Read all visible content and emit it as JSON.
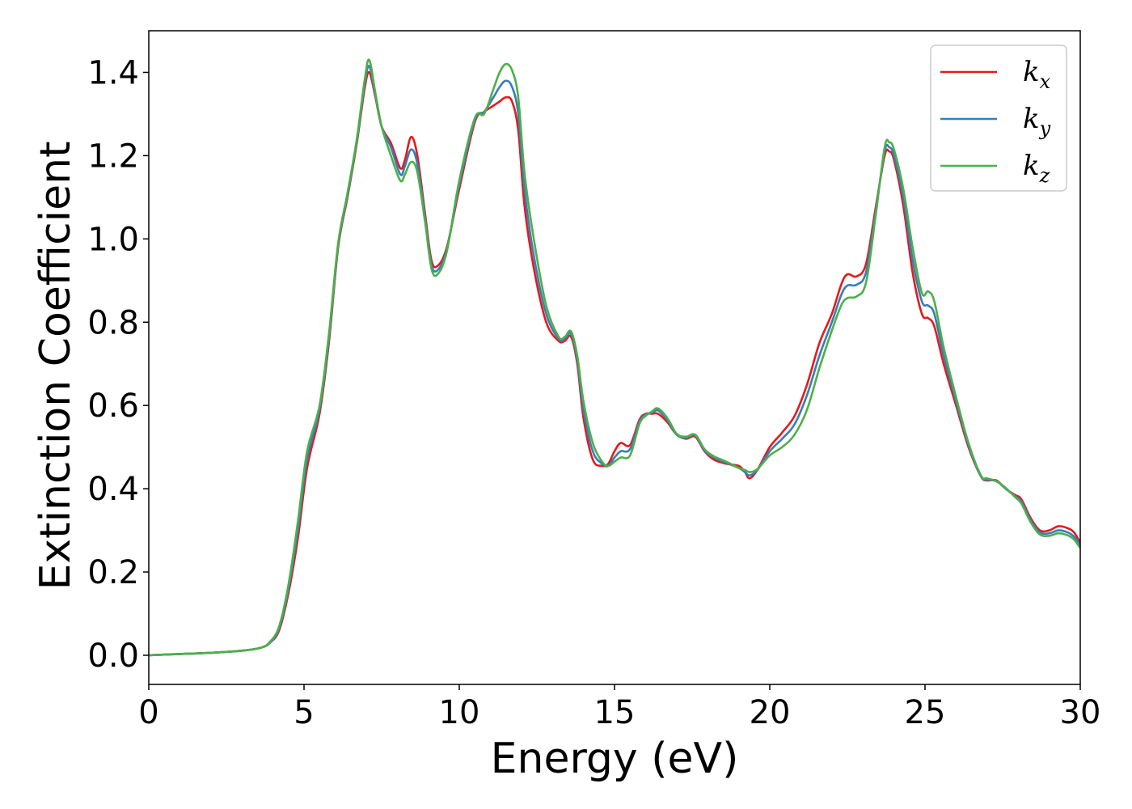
{
  "chart_data": {
    "type": "line",
    "title": "",
    "xlabel": "Energy (eV)",
    "ylabel": "Extinction Coefficient",
    "xlim": [
      0,
      30
    ],
    "ylim": [
      -0.07,
      1.5
    ],
    "xticks": [
      0,
      5,
      10,
      15,
      20,
      25,
      30
    ],
    "xtick_labels": [
      "0",
      "5",
      "10",
      "15",
      "20",
      "25",
      "30"
    ],
    "yticks": [
      0.0,
      0.2,
      0.4,
      0.6,
      0.8,
      1.0,
      1.2,
      1.4
    ],
    "ytick_labels": [
      "0.0",
      "0.2",
      "0.4",
      "0.6",
      "0.8",
      "1.0",
      "1.2",
      "1.4"
    ],
    "grid": false,
    "legend_position": "top-right",
    "series": [
      {
        "name": "k_x",
        "label_main": "k",
        "label_sub": "x",
        "color": "#e41a1c",
        "points": [
          [
            0,
            0
          ],
          [
            1,
            0.003
          ],
          [
            2,
            0.006
          ],
          [
            3,
            0.011
          ],
          [
            3.6,
            0.018
          ],
          [
            3.9,
            0.03
          ],
          [
            4.2,
            0.06
          ],
          [
            4.5,
            0.15
          ],
          [
            4.8,
            0.28
          ],
          [
            5.1,
            0.45
          ],
          [
            5.5,
            0.58
          ],
          [
            5.8,
            0.75
          ],
          [
            6.1,
            0.98
          ],
          [
            6.4,
            1.1
          ],
          [
            6.7,
            1.23
          ],
          [
            6.95,
            1.36
          ],
          [
            7.1,
            1.4
          ],
          [
            7.3,
            1.34
          ],
          [
            7.5,
            1.27
          ],
          [
            7.8,
            1.23
          ],
          [
            8.1,
            1.17
          ],
          [
            8.25,
            1.19
          ],
          [
            8.45,
            1.245
          ],
          [
            8.65,
            1.2
          ],
          [
            8.9,
            1.06
          ],
          [
            9.1,
            0.95
          ],
          [
            9.3,
            0.935
          ],
          [
            9.6,
            0.98
          ],
          [
            10,
            1.12
          ],
          [
            10.5,
            1.28
          ],
          [
            10.8,
            1.305
          ],
          [
            11.1,
            1.32
          ],
          [
            11.3,
            1.33
          ],
          [
            11.5,
            1.34
          ],
          [
            11.7,
            1.33
          ],
          [
            11.9,
            1.26
          ],
          [
            12.1,
            1.08
          ],
          [
            12.4,
            0.93
          ],
          [
            12.8,
            0.8
          ],
          [
            13.2,
            0.755
          ],
          [
            13.4,
            0.755
          ],
          [
            13.6,
            0.765
          ],
          [
            13.8,
            0.7
          ],
          [
            14,
            0.57
          ],
          [
            14.3,
            0.47
          ],
          [
            14.6,
            0.455
          ],
          [
            14.8,
            0.46
          ],
          [
            15,
            0.49
          ],
          [
            15.2,
            0.51
          ],
          [
            15.5,
            0.505
          ],
          [
            15.8,
            0.565
          ],
          [
            16,
            0.58
          ],
          [
            16.2,
            0.58
          ],
          [
            16.4,
            0.58
          ],
          [
            16.7,
            0.56
          ],
          [
            17,
            0.53
          ],
          [
            17.3,
            0.52
          ],
          [
            17.6,
            0.525
          ],
          [
            17.9,
            0.49
          ],
          [
            18.2,
            0.47
          ],
          [
            18.6,
            0.46
          ],
          [
            19,
            0.455
          ],
          [
            19.2,
            0.44
          ],
          [
            19.35,
            0.425
          ],
          [
            19.6,
            0.445
          ],
          [
            20,
            0.5
          ],
          [
            20.4,
            0.535
          ],
          [
            20.8,
            0.575
          ],
          [
            21.2,
            0.65
          ],
          [
            21.6,
            0.75
          ],
          [
            22,
            0.82
          ],
          [
            22.3,
            0.89
          ],
          [
            22.5,
            0.915
          ],
          [
            22.8,
            0.91
          ],
          [
            23.1,
            0.94
          ],
          [
            23.4,
            1.07
          ],
          [
            23.7,
            1.2
          ],
          [
            23.85,
            1.21
          ],
          [
            24,
            1.19
          ],
          [
            24.3,
            1.08
          ],
          [
            24.6,
            0.92
          ],
          [
            24.9,
            0.82
          ],
          [
            25.1,
            0.81
          ],
          [
            25.3,
            0.79
          ],
          [
            25.6,
            0.7
          ],
          [
            26,
            0.6
          ],
          [
            26.4,
            0.5
          ],
          [
            26.8,
            0.43
          ],
          [
            27,
            0.42
          ],
          [
            27.3,
            0.42
          ],
          [
            27.6,
            0.4
          ],
          [
            27.9,
            0.385
          ],
          [
            28.1,
            0.375
          ],
          [
            28.4,
            0.33
          ],
          [
            28.7,
            0.3
          ],
          [
            29,
            0.3
          ],
          [
            29.3,
            0.31
          ],
          [
            29.6,
            0.305
          ],
          [
            29.8,
            0.295
          ],
          [
            30,
            0.27
          ]
        ]
      },
      {
        "name": "k_y",
        "label_main": "k",
        "label_sub": "y",
        "color": "#377eb8",
        "points": [
          [
            0,
            0
          ],
          [
            1,
            0.003
          ],
          [
            2,
            0.006
          ],
          [
            3,
            0.011
          ],
          [
            3.6,
            0.018
          ],
          [
            3.9,
            0.03
          ],
          [
            4.2,
            0.065
          ],
          [
            4.5,
            0.16
          ],
          [
            4.8,
            0.3
          ],
          [
            5.1,
            0.47
          ],
          [
            5.5,
            0.59
          ],
          [
            5.8,
            0.76
          ],
          [
            6.1,
            0.985
          ],
          [
            6.4,
            1.105
          ],
          [
            6.7,
            1.235
          ],
          [
            6.95,
            1.37
          ],
          [
            7.1,
            1.415
          ],
          [
            7.3,
            1.345
          ],
          [
            7.5,
            1.27
          ],
          [
            7.8,
            1.22
          ],
          [
            8.1,
            1.155
          ],
          [
            8.25,
            1.175
          ],
          [
            8.45,
            1.215
          ],
          [
            8.65,
            1.18
          ],
          [
            8.9,
            1.05
          ],
          [
            9.1,
            0.94
          ],
          [
            9.3,
            0.925
          ],
          [
            9.6,
            0.975
          ],
          [
            10,
            1.13
          ],
          [
            10.5,
            1.285
          ],
          [
            10.8,
            1.305
          ],
          [
            11.1,
            1.34
          ],
          [
            11.3,
            1.365
          ],
          [
            11.5,
            1.38
          ],
          [
            11.7,
            1.365
          ],
          [
            11.9,
            1.3
          ],
          [
            12.1,
            1.12
          ],
          [
            12.4,
            0.96
          ],
          [
            12.8,
            0.82
          ],
          [
            13.2,
            0.76
          ],
          [
            13.4,
            0.76
          ],
          [
            13.6,
            0.772
          ],
          [
            13.8,
            0.71
          ],
          [
            14,
            0.59
          ],
          [
            14.3,
            0.49
          ],
          [
            14.6,
            0.46
          ],
          [
            14.8,
            0.455
          ],
          [
            15,
            0.475
          ],
          [
            15.2,
            0.49
          ],
          [
            15.5,
            0.495
          ],
          [
            15.8,
            0.56
          ],
          [
            16,
            0.578
          ],
          [
            16.2,
            0.582
          ],
          [
            16.4,
            0.588
          ],
          [
            16.7,
            0.565
          ],
          [
            17,
            0.53
          ],
          [
            17.3,
            0.522
          ],
          [
            17.6,
            0.528
          ],
          [
            17.9,
            0.492
          ],
          [
            18.2,
            0.475
          ],
          [
            18.6,
            0.462
          ],
          [
            19,
            0.45
          ],
          [
            19.2,
            0.44
          ],
          [
            19.35,
            0.432
          ],
          [
            19.6,
            0.445
          ],
          [
            20,
            0.49
          ],
          [
            20.4,
            0.52
          ],
          [
            20.8,
            0.555
          ],
          [
            21.2,
            0.625
          ],
          [
            21.6,
            0.72
          ],
          [
            22,
            0.8
          ],
          [
            22.3,
            0.865
          ],
          [
            22.5,
            0.888
          ],
          [
            22.8,
            0.89
          ],
          [
            23.1,
            0.92
          ],
          [
            23.4,
            1.06
          ],
          [
            23.7,
            1.21
          ],
          [
            23.85,
            1.22
          ],
          [
            24,
            1.2
          ],
          [
            24.3,
            1.1
          ],
          [
            24.6,
            0.95
          ],
          [
            24.9,
            0.85
          ],
          [
            25.1,
            0.84
          ],
          [
            25.3,
            0.82
          ],
          [
            25.6,
            0.72
          ],
          [
            26,
            0.61
          ],
          [
            26.4,
            0.505
          ],
          [
            26.8,
            0.43
          ],
          [
            27,
            0.422
          ],
          [
            27.3,
            0.418
          ],
          [
            27.6,
            0.4
          ],
          [
            27.9,
            0.382
          ],
          [
            28.1,
            0.37
          ],
          [
            28.4,
            0.325
          ],
          [
            28.7,
            0.295
          ],
          [
            29,
            0.293
          ],
          [
            29.3,
            0.3
          ],
          [
            29.6,
            0.295
          ],
          [
            29.8,
            0.285
          ],
          [
            30,
            0.265
          ]
        ]
      },
      {
        "name": "k_z",
        "label_main": "k",
        "label_sub": "z",
        "color": "#4daf4a",
        "points": [
          [
            0,
            0
          ],
          [
            1,
            0.003
          ],
          [
            2,
            0.006
          ],
          [
            3,
            0.011
          ],
          [
            3.6,
            0.018
          ],
          [
            3.9,
            0.032
          ],
          [
            4.2,
            0.07
          ],
          [
            4.5,
            0.17
          ],
          [
            4.8,
            0.32
          ],
          [
            5.1,
            0.49
          ],
          [
            5.5,
            0.6
          ],
          [
            5.8,
            0.77
          ],
          [
            6.1,
            0.99
          ],
          [
            6.4,
            1.11
          ],
          [
            6.7,
            1.24
          ],
          [
            6.95,
            1.38
          ],
          [
            7.1,
            1.43
          ],
          [
            7.3,
            1.35
          ],
          [
            7.5,
            1.27
          ],
          [
            7.8,
            1.2
          ],
          [
            8.1,
            1.14
          ],
          [
            8.25,
            1.155
          ],
          [
            8.45,
            1.185
          ],
          [
            8.65,
            1.16
          ],
          [
            8.9,
            1.04
          ],
          [
            9.1,
            0.93
          ],
          [
            9.3,
            0.915
          ],
          [
            9.6,
            0.97
          ],
          [
            10,
            1.14
          ],
          [
            10.5,
            1.29
          ],
          [
            10.8,
            1.3
          ],
          [
            11.1,
            1.36
          ],
          [
            11.3,
            1.4
          ],
          [
            11.5,
            1.42
          ],
          [
            11.7,
            1.405
          ],
          [
            11.9,
            1.34
          ],
          [
            12.1,
            1.16
          ],
          [
            12.4,
            1.0
          ],
          [
            12.8,
            0.84
          ],
          [
            13.2,
            0.765
          ],
          [
            13.4,
            0.765
          ],
          [
            13.6,
            0.778
          ],
          [
            13.8,
            0.72
          ],
          [
            14,
            0.61
          ],
          [
            14.3,
            0.51
          ],
          [
            14.6,
            0.465
          ],
          [
            14.8,
            0.455
          ],
          [
            15,
            0.465
          ],
          [
            15.2,
            0.475
          ],
          [
            15.5,
            0.48
          ],
          [
            15.8,
            0.555
          ],
          [
            16,
            0.575
          ],
          [
            16.2,
            0.585
          ],
          [
            16.4,
            0.593
          ],
          [
            16.7,
            0.57
          ],
          [
            17,
            0.532
          ],
          [
            17.3,
            0.525
          ],
          [
            17.6,
            0.53
          ],
          [
            17.9,
            0.495
          ],
          [
            18.2,
            0.478
          ],
          [
            18.6,
            0.465
          ],
          [
            19,
            0.45
          ],
          [
            19.2,
            0.445
          ],
          [
            19.35,
            0.44
          ],
          [
            19.6,
            0.447
          ],
          [
            20,
            0.48
          ],
          [
            20.4,
            0.5
          ],
          [
            20.8,
            0.53
          ],
          [
            21.2,
            0.59
          ],
          [
            21.6,
            0.69
          ],
          [
            22,
            0.78
          ],
          [
            22.3,
            0.84
          ],
          [
            22.5,
            0.858
          ],
          [
            22.8,
            0.862
          ],
          [
            23.1,
            0.895
          ],
          [
            23.4,
            1.05
          ],
          [
            23.7,
            1.22
          ],
          [
            23.85,
            1.232
          ],
          [
            24,
            1.215
          ],
          [
            24.3,
            1.12
          ],
          [
            24.6,
            0.98
          ],
          [
            24.9,
            0.87
          ],
          [
            25.1,
            0.874
          ],
          [
            25.3,
            0.85
          ],
          [
            25.6,
            0.74
          ],
          [
            26,
            0.62
          ],
          [
            26.4,
            0.51
          ],
          [
            26.8,
            0.432
          ],
          [
            27,
            0.425
          ],
          [
            27.3,
            0.418
          ],
          [
            27.6,
            0.402
          ],
          [
            27.9,
            0.38
          ],
          [
            28.1,
            0.365
          ],
          [
            28.4,
            0.32
          ],
          [
            28.7,
            0.29
          ],
          [
            29,
            0.287
          ],
          [
            29.3,
            0.293
          ],
          [
            29.6,
            0.288
          ],
          [
            29.8,
            0.278
          ],
          [
            30,
            0.258
          ]
        ]
      }
    ]
  }
}
